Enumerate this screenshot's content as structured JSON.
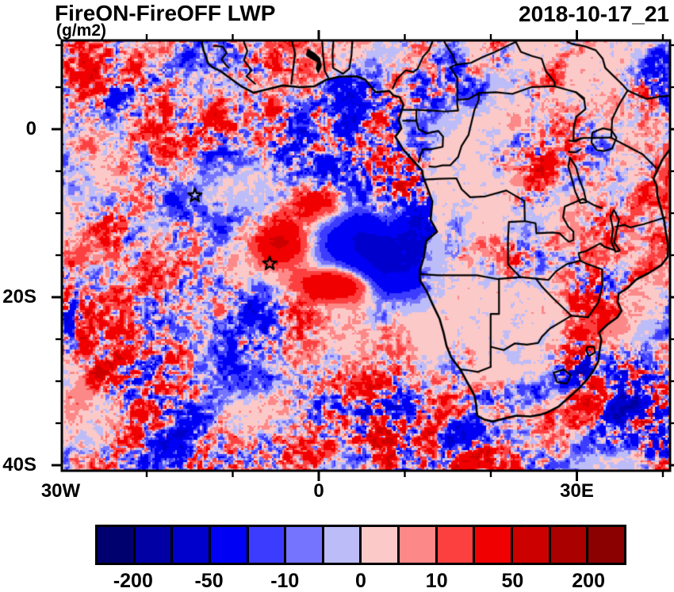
{
  "header": {
    "title": "FireON-FireOFF LWP",
    "subtitle": "(g/m2)",
    "timestamp": "2018-10-17_21"
  },
  "chart_data": {
    "type": "heatmap",
    "title": "FireON-FireOFF LWP",
    "units": "g/m2",
    "timestamp": "2018-10-17_21",
    "description": "Pixelated difference field of liquid water path (simulation with fires minus without fires) over Africa and the South Atlantic. Strong alternating red/blue anomalies over ocean stratocumulus decks and the SW Indian Ocean; mostly near-zero (pale pink) over the African interior with scattered speckle clusters; smooth lavender-blue deck region west of Angola; calm strip along the Benguela coast; intense cluster near the KwaZulu-Natal coast.",
    "extent": {
      "lon_min": -30.0,
      "lon_max": 40.8,
      "lat_min": -40.7,
      "lat_max": 10.6
    },
    "x_axis": {
      "major_ticks": [
        {
          "value": -30,
          "label": "30W"
        },
        {
          "value": 0,
          "label": "0"
        },
        {
          "value": 30,
          "label": "30E"
        }
      ],
      "minor_tick_step_deg": 10
    },
    "y_axis": {
      "major_ticks": [
        {
          "value": 0,
          "label": "0"
        },
        {
          "value": -20,
          "label": "20S"
        },
        {
          "value": -40,
          "label": "40S"
        }
      ],
      "minor_tick_step_deg": 5
    },
    "colorbar": {
      "levels": [
        -200,
        -100,
        -50,
        -20,
        -10,
        -5,
        0,
        5,
        10,
        20,
        50,
        100,
        200
      ],
      "colors": [
        "#00006e",
        "#0000a4",
        "#0000cd",
        "#0000f5",
        "#3c3cff",
        "#7474ff",
        "#bcbcf8",
        "#fcc9c9",
        "#fc8888",
        "#fc4040",
        "#f00000",
        "#cd0000",
        "#aa0000",
        "#8b0000"
      ],
      "labels": [
        "-200",
        "-50",
        "-10",
        "0",
        "10",
        "50",
        "200"
      ],
      "labeled_level_indices": [
        0,
        2,
        4,
        6,
        8,
        10,
        12
      ]
    },
    "markers": [
      {
        "symbol": "star",
        "lon": -14.4,
        "lat": -7.9
      },
      {
        "symbol": "star",
        "lon": -5.7,
        "lat": -16.0
      }
    ],
    "basemap": {
      "features": [
        "african-coastline",
        "country-borders",
        "lake-victoria",
        "lake-tanganyika",
        "lake-malawi",
        "lake-volta-filled",
        "lesotho",
        "eswatini"
      ]
    }
  },
  "colors": {
    "background": "#ffffff",
    "frame": "#000000",
    "text": "#000000",
    "near_zero_fill": "#fcc9c9"
  }
}
